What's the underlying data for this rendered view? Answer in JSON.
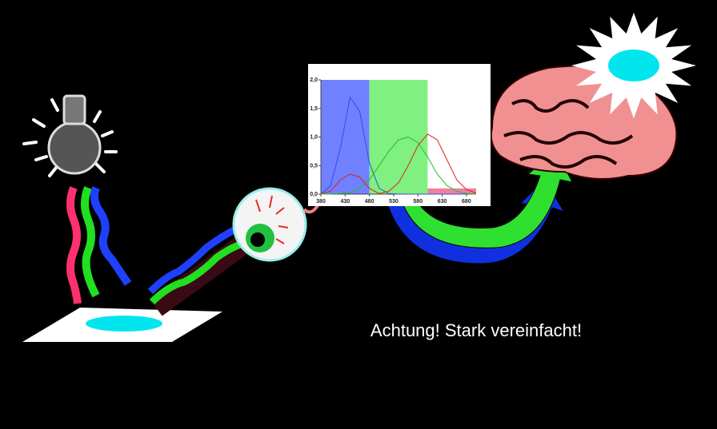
{
  "caption": "Achtung! Stark vereinfacht!",
  "chart_data": {
    "type": "line",
    "x": [
      380,
      400,
      420,
      440,
      460,
      480,
      500,
      520,
      540,
      560,
      580,
      600,
      620,
      640,
      660,
      680,
      700
    ],
    "series": [
      {
        "color": "#3050e0",
        "values": [
          0.0,
          0.15,
          0.8,
          1.7,
          1.45,
          0.55,
          0.1,
          0.01,
          0,
          0,
          0,
          0,
          0,
          0,
          0,
          0,
          0
        ]
      },
      {
        "color": "#20c020",
        "values": [
          0,
          0,
          0.01,
          0.03,
          0.1,
          0.25,
          0.5,
          0.75,
          0.95,
          1.0,
          0.9,
          0.65,
          0.35,
          0.15,
          0.05,
          0.01,
          0
        ]
      },
      {
        "color": "#e02020",
        "values": [
          0.01,
          0.05,
          0.25,
          0.35,
          0.3,
          0.1,
          0.01,
          0.05,
          0.2,
          0.5,
          0.85,
          1.05,
          0.95,
          0.6,
          0.25,
          0.08,
          0.02
        ]
      }
    ],
    "bands": [
      {
        "from": 380,
        "to": 480,
        "top": 2,
        "color": "#7080ff"
      },
      {
        "from": 480,
        "to": 600,
        "top": 2,
        "color": "#80f080"
      },
      {
        "from": 600,
        "to": 700,
        "top": 0.1,
        "color": "#f080a0"
      }
    ],
    "xlim": [
      380,
      700
    ],
    "ylim": [
      0,
      2
    ],
    "xticks": [
      380,
      430,
      480,
      530,
      580,
      630,
      680
    ],
    "yticks": [
      {
        "value": 0,
        "label": "0,0"
      },
      {
        "value": 0.5,
        "label": "0,5"
      },
      {
        "value": 1,
        "label": "1,0"
      },
      {
        "value": 1.5,
        "label": "1,5"
      },
      {
        "value": 2,
        "label": "2,0"
      }
    ]
  }
}
